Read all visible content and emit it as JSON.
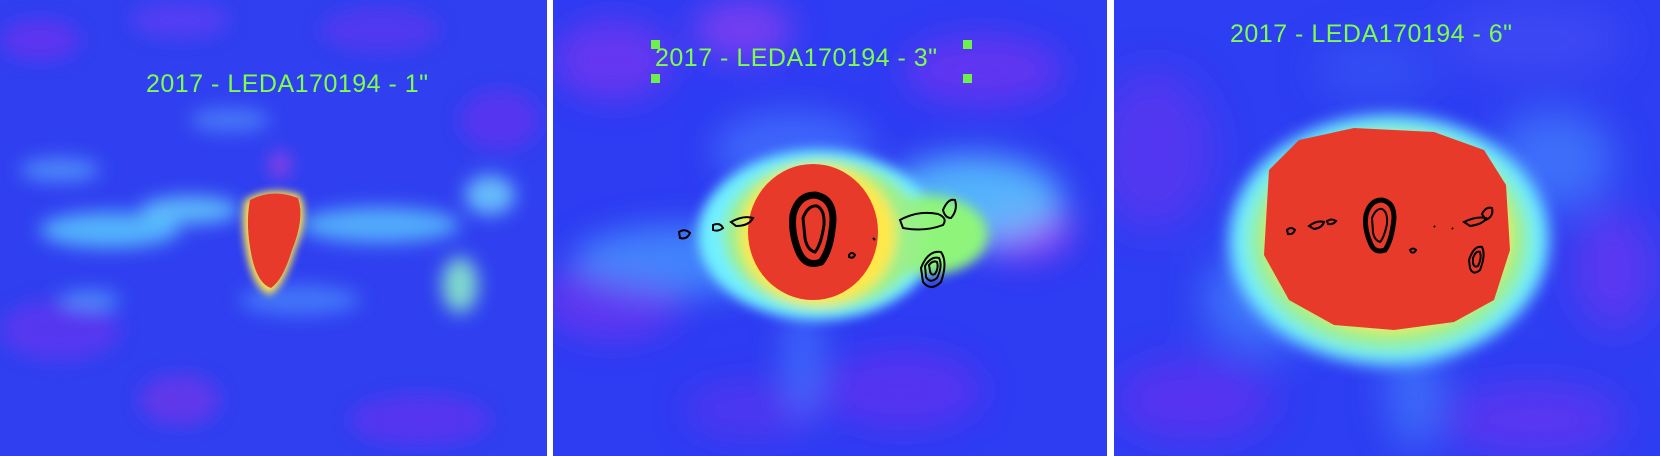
{
  "panels": [
    {
      "title": "2017 - LEDA170194 - 1\""
    },
    {
      "title": "2017 - LEDA170194 - 3\""
    },
    {
      "title": "2017 - LEDA170194 - 6\""
    }
  ],
  "colors": {
    "background": "#2b3cf2",
    "low": "#7a2cf0",
    "mid": "#5fe8ff",
    "high": "#e83a2a",
    "label": "#7dff4a",
    "contour": "#000000"
  }
}
